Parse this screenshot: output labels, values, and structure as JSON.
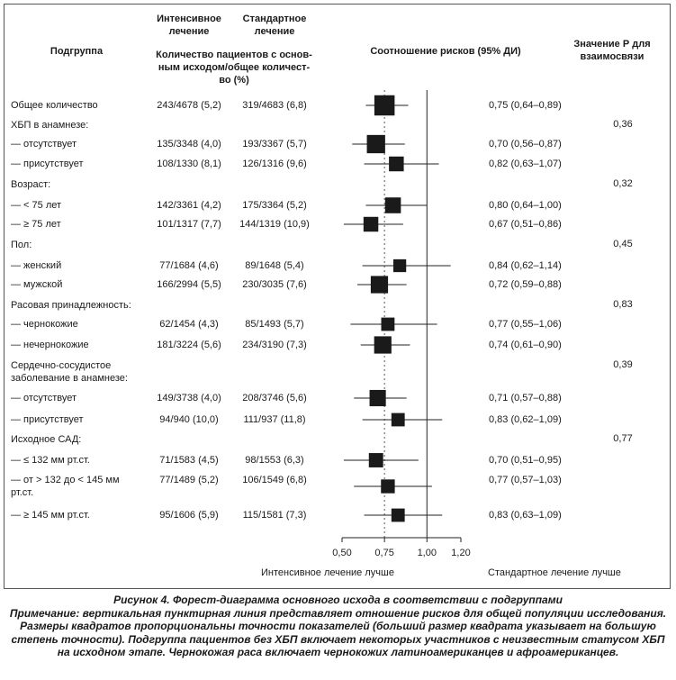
{
  "header": {
    "subgroup": "Подгруппа",
    "intensive": [
      "Интенсивное",
      "лечение"
    ],
    "standard": [
      "Стандартное",
      "лечение"
    ],
    "patients": [
      "Количество пациентов с основ-",
      "ным исходом/общее количест-",
      "во (%)"
    ],
    "hr": "Соотношение рисков (95% ДИ)",
    "pvalue": [
      "Значение Р для",
      "взаимосвязи"
    ]
  },
  "rows": [
    {
      "label": "Общее количество",
      "intensive": "243/4678 (5,2)",
      "standard": "319/4683 (6,8)",
      "ci_text": "0,75 (0,64–0,89)"
    },
    {
      "label": "ХБП в анамнезе:",
      "pvalue": "0,36"
    },
    {
      "label": "— отсутствует",
      "intensive": "135/3348 (4,0)",
      "standard": "193/3367 (5,7)",
      "ci_text": "0,70 (0,56–0,87)"
    },
    {
      "label": "— присутствует",
      "intensive": "108/1330 (8,1)",
      "standard": "126/1316 (9,6)",
      "ci_text": "0,82 (0,63–1,07)"
    },
    {
      "label": "Возраст:",
      "pvalue": "0,32"
    },
    {
      "label": "— < 75 лет",
      "intensive": "142/3361 (4,2)",
      "standard": "175/3364 (5,2)",
      "ci_text": "0,80 (0,64–1,00)"
    },
    {
      "label": "— ≥ 75 лет",
      "intensive": "101/1317 (7,7)",
      "standard": "144/1319 (10,9)",
      "ci_text": "0,67 (0,51–0,86)"
    },
    {
      "label": "Пол:",
      "pvalue": "0,45"
    },
    {
      "label": "— женский",
      "intensive": "77/1684 (4,6)",
      "standard": "89/1648 (5,4)",
      "ci_text": "0,84 (0,62–1,14)"
    },
    {
      "label": "— мужской",
      "intensive": "166/2994 (5,5)",
      "standard": "230/3035 (7,6)",
      "ci_text": "0,72 (0,59–0,88)"
    },
    {
      "label": "Расовая принадлежность:",
      "pvalue": "0,83"
    },
    {
      "label": "— чернокожие",
      "intensive": "62/1454 (4,3)",
      "standard": "85/1493 (5,7)",
      "ci_text": "0,77 (0,55–1,06)"
    },
    {
      "label": "— нечернокожие",
      "intensive": "181/3224 (5,6)",
      "standard": "234/3190 (7,3)",
      "ci_text": "0,74 (0,61–0,90)"
    },
    {
      "label": "Сердечно-сосудистое заболевание в анамнезе:",
      "label_lines": [
        "Сердечно-сосудистое",
        "заболевание в анамнезе:"
      ],
      "pvalue": "0,39"
    },
    {
      "label": "— отсутствует",
      "intensive": "149/3738 (4,0)",
      "standard": "208/3746 (5,6)",
      "ci_text": "0,71 (0,57–0,88)"
    },
    {
      "label": "— присутствует",
      "intensive": "94/940 (10,0)",
      "standard": "111/937 (11,8)",
      "ci_text": "0,83 (0,62–1,09)"
    },
    {
      "label": "Исходное САД:",
      "pvalue": "0,77"
    },
    {
      "label": "— ≤ 132 мм рт.ст.",
      "intensive": "71/1583 (4,5)",
      "standard": "98/1553 (6,3)",
      "ci_text": "0,70 (0,51–0,95)"
    },
    {
      "label": "— от > 132 до < 145 мм рт.ст.",
      "label_lines": [
        "— от > 132 до < 145 мм",
        "рт.ст."
      ],
      "intensive": "77/1489 (5,2)",
      "standard": "106/1549 (6,8)",
      "ci_text": "0,77 (0,57–1,03)"
    },
    {
      "label": "— ≥ 145 мм рт.ст.",
      "intensive": "95/1606 (5,9)",
      "standard": "115/1581 (7,3)",
      "ci_text": "0,83 (0,63–1,09)"
    }
  ],
  "axis": {
    "ticks": [
      "0,50",
      "0,75",
      "1,00",
      "1,20"
    ],
    "favor_left": "Интенсивное лечение лучше",
    "favor_right": "Стандартное лечение лучше"
  },
  "chart_data": {
    "type": "scatter",
    "xlim": [
      0.5,
      1.2
    ],
    "reference_lines": {
      "null": 1.0,
      "overall": 0.75
    },
    "points": [
      {
        "label": "Общее количество",
        "hr": 0.75,
        "lo": 0.64,
        "hi": 0.89,
        "weight": 3
      },
      {
        "label": "ХБП: отсутствует",
        "hr": 0.7,
        "lo": 0.56,
        "hi": 0.87,
        "weight": 2.6
      },
      {
        "label": "ХБП: присутствует",
        "hr": 0.82,
        "lo": 0.63,
        "hi": 1.07,
        "weight": 1.9
      },
      {
        "label": "< 75 лет",
        "hr": 0.8,
        "lo": 0.64,
        "hi": 1.0,
        "weight": 2.1
      },
      {
        "label": "≥ 75 лет",
        "hr": 0.67,
        "lo": 0.51,
        "hi": 0.86,
        "weight": 1.9
      },
      {
        "label": "женский",
        "hr": 0.84,
        "lo": 0.62,
        "hi": 1.14,
        "weight": 1.5
      },
      {
        "label": "мужской",
        "hr": 0.72,
        "lo": 0.59,
        "hi": 0.88,
        "weight": 2.4
      },
      {
        "label": "чернокожие",
        "hr": 0.77,
        "lo": 0.55,
        "hi": 1.06,
        "weight": 1.6
      },
      {
        "label": "нечернокожие",
        "hr": 0.74,
        "lo": 0.61,
        "hi": 0.9,
        "weight": 2.4
      },
      {
        "label": "ССЗ: отсутствует",
        "hr": 0.71,
        "lo": 0.57,
        "hi": 0.88,
        "weight": 2.2
      },
      {
        "label": "ССЗ: присутствует",
        "hr": 0.83,
        "lo": 0.62,
        "hi": 1.09,
        "weight": 1.6
      },
      {
        "label": "≤ 132 мм рт.ст.",
        "hr": 0.7,
        "lo": 0.51,
        "hi": 0.95,
        "weight": 1.8
      },
      {
        "label": "> 132 до < 145",
        "hr": 0.77,
        "lo": 0.57,
        "hi": 1.03,
        "weight": 1.7
      },
      {
        "label": "≥ 145 мм рт.ст.",
        "hr": 0.83,
        "lo": 0.63,
        "hi": 1.09,
        "weight": 1.6
      }
    ]
  },
  "caption": {
    "title": "Рисунок 4. Форест-диаграмма основного исхода в соответствии с подгруппами",
    "note": "Примечание: вертикальная пунктирная линия представляет отношение рисков для общей популяции исследования. Размеры квадратов пропорциональны точности показателей (больший размер квадрата указывает на большую степень точности). Подгруппа пациентов без ХБП включает некоторых участников с неизвестным статусом ХБП на исходном этапе. Чернокожая раса включает чернокожих латиноамериканцев и афроамериканцев."
  }
}
